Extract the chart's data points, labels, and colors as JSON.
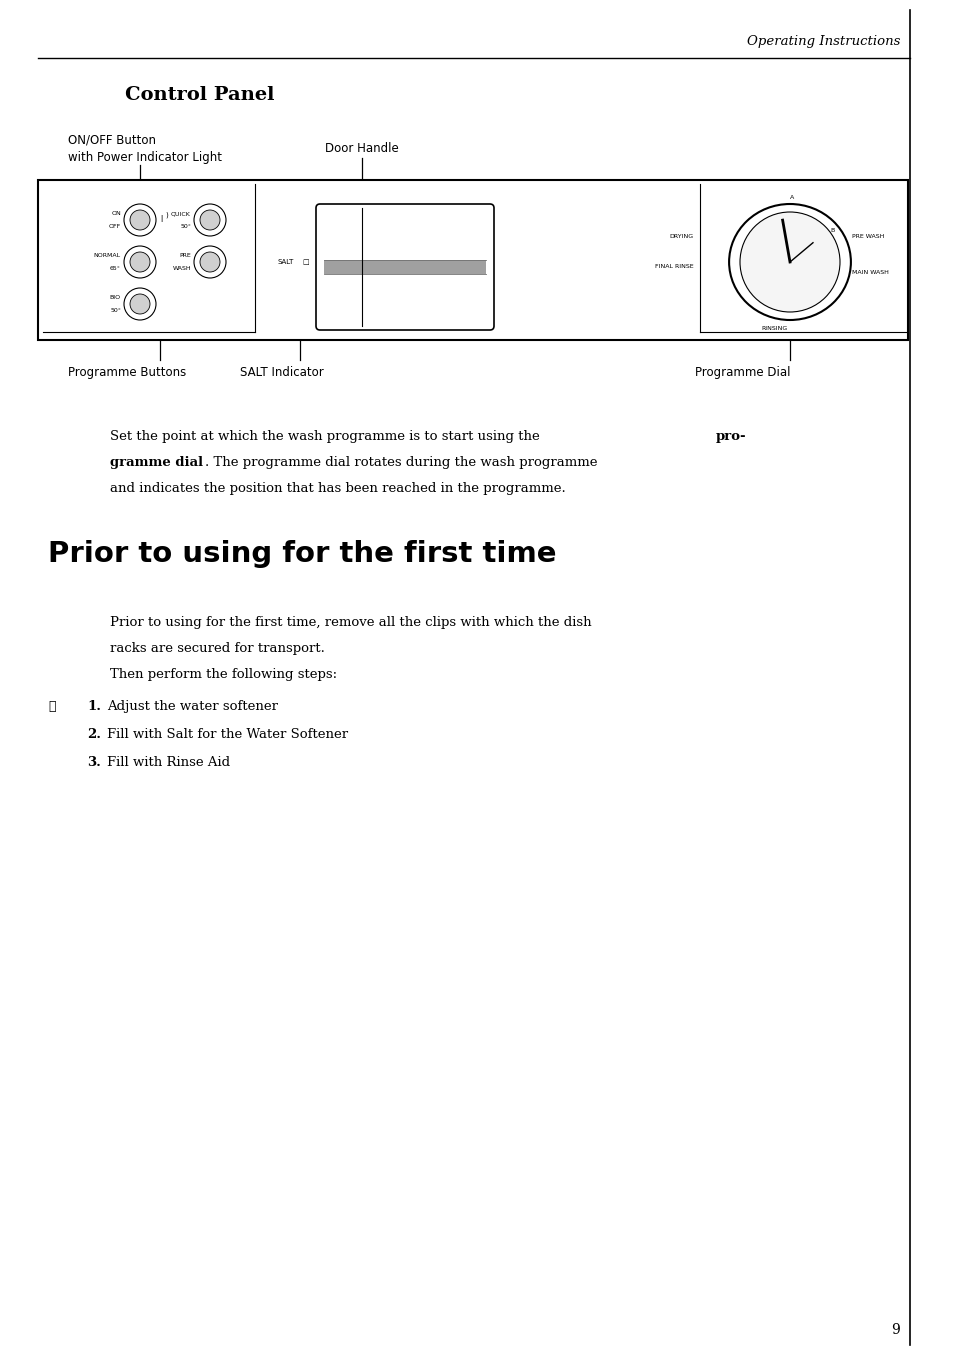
{
  "page_bg": "#ffffff",
  "border_color": "#000000",
  "header_text": "Operating Instructions",
  "section1_title": "Control Panel",
  "label_on_off_line1": "ON/OFF Button",
  "label_on_off_line2": "with Power Indicator Light",
  "label_door": "Door Handle",
  "label_prog_buttons": "Programme Buttons",
  "label_salt": "SALT Indicator",
  "label_prog_dial": "Programme Dial",
  "section2_title": "Prior to using for the first time",
  "para1_line1": "Prior to using for the first time, remove all the clips with which the dish",
  "para1_line2": "racks are secured for transport.",
  "para1_line3": "Then perform the following steps:",
  "step1_num": "1.",
  "step1_text": "Adjust the water softener",
  "step2_num": "2.",
  "step2_text": "Fill with Salt for the Water Softener",
  "step3_num": "3.",
  "step3_text": "Fill with Rinse Aid",
  "page_num": "9"
}
